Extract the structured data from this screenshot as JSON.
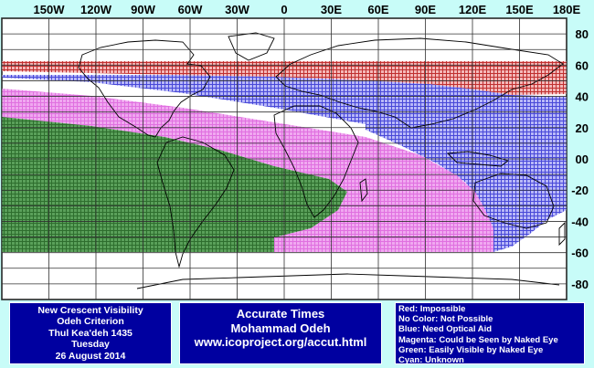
{
  "map": {
    "lon_labels": [
      "150W",
      "120W",
      "90W",
      "60W",
      "30W",
      "0",
      "30E",
      "60E",
      "90E",
      "120E",
      "150E",
      "180E"
    ],
    "lat_labels": [
      "80",
      "60",
      "40",
      "20",
      "00",
      "-20",
      "-40",
      "-60",
      "-80"
    ],
    "zone_colors": {
      "impossible": "#c03030",
      "optical_aid": "#4848d8",
      "naked_eye": "#e070e0",
      "easily_visible": "#3c8a3c",
      "grid": "#303030"
    }
  },
  "info_box": {
    "line1": "New Crescent Visibility",
    "line2": "Odeh Criterion",
    "line3": "Thul Kea'deh 1435",
    "line4": "Tuesday",
    "line5": "26 August 2014"
  },
  "credit_box": {
    "line1": "Accurate Times",
    "line2": "Mohammad Odeh",
    "line3": "www.icoproject.org/accut.html"
  },
  "legend": {
    "red": "Red: Impossible",
    "none": "No Color: Not Possible",
    "blue": "Blue: Need Optical Aid",
    "magenta": "Magenta: Could be Seen by Naked Eye",
    "green": "Green: Easily Visible by Naked Eye",
    "cyan": "Cyan: Unknown"
  }
}
